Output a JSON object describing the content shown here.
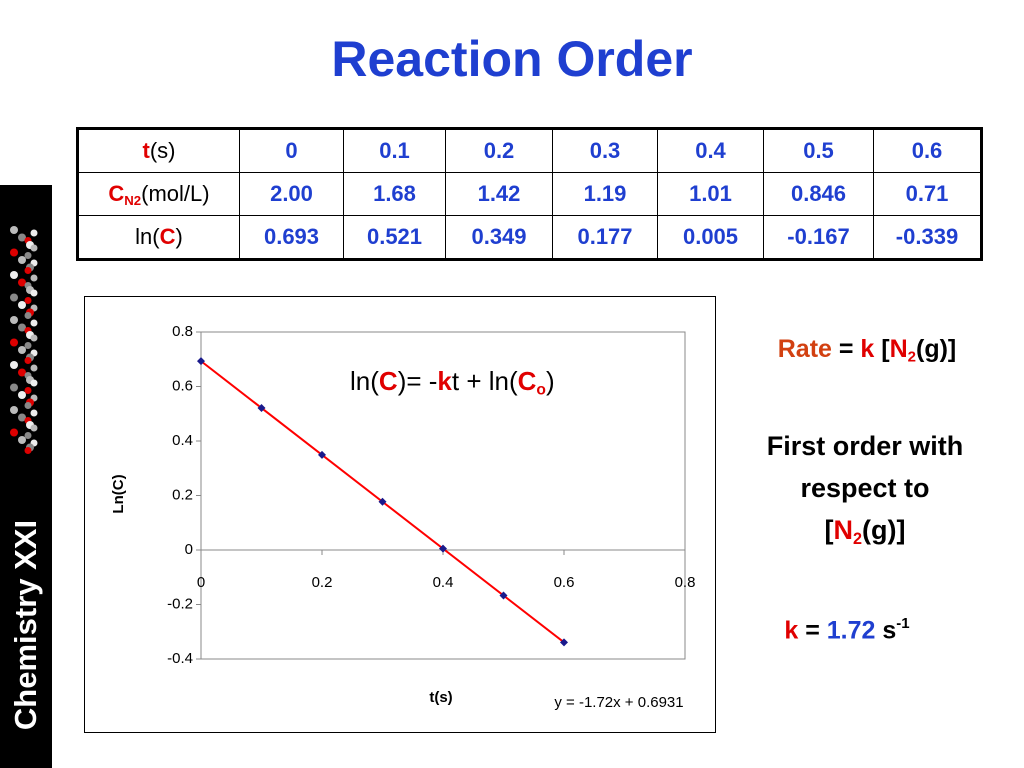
{
  "title": "Reaction Order",
  "sidebar": {
    "label": "Chemistry XXI"
  },
  "table": {
    "rows": [
      {
        "label": [
          {
            "text": "t",
            "style": "red"
          },
          {
            "text": "(s)",
            "style": "plain"
          }
        ],
        "cells": [
          "0",
          "0.1",
          "0.2",
          "0.3",
          "0.4",
          "0.5",
          "0.6"
        ]
      },
      {
        "label": [
          {
            "text": "C",
            "style": "red"
          },
          {
            "text": "N2",
            "style": "red sub"
          },
          {
            "text": "(mol/L)",
            "style": "plain"
          }
        ],
        "cells": [
          "2.00",
          "1.68",
          "1.42",
          "1.19",
          "1.01",
          "0.846",
          "0.71"
        ]
      },
      {
        "label": [
          {
            "text": "ln(",
            "style": "plain"
          },
          {
            "text": "C",
            "style": "red"
          },
          {
            "text": ")",
            "style": "plain"
          }
        ],
        "cells": [
          "0.693",
          "0.521",
          "0.349",
          "0.177",
          "0.005",
          "-0.167",
          "-0.339"
        ]
      }
    ]
  },
  "chart_data": {
    "type": "scatter",
    "x": [
      0,
      0.1,
      0.2,
      0.3,
      0.4,
      0.5,
      0.6
    ],
    "values": [
      0.693,
      0.521,
      0.349,
      0.177,
      0.005,
      -0.167,
      -0.339
    ],
    "color": "#1a1a8c",
    "xlim": [
      0,
      0.8
    ],
    "xticks": [
      0,
      0.2,
      0.4,
      0.6,
      0.8
    ],
    "ylim": [
      -0.4,
      0.8
    ],
    "yticks": [
      -0.4,
      -0.2,
      0,
      0.2,
      0.4,
      0.6,
      0.8
    ],
    "xlabel": "t(s)",
    "ylabel": "Ln(C)",
    "trendline": {
      "slope": -1.72,
      "intercept": 0.6931,
      "color": "#ff0000",
      "label": "y = -1.72x + 0.6931"
    },
    "annotation": [
      {
        "text": "ln(",
        "style": "plain"
      },
      {
        "text": "C",
        "style": "red"
      },
      {
        "text": ")= -",
        "style": "plain"
      },
      {
        "text": "k",
        "style": "red"
      },
      {
        "text": "t + ln(",
        "style": "plain"
      },
      {
        "text": "C",
        "style": "red"
      },
      {
        "text": "o",
        "style": "red sub"
      },
      {
        "text": ")",
        "style": "plain"
      }
    ]
  },
  "notes": {
    "rate_law": [
      {
        "text": "Rate",
        "style": "orange"
      },
      {
        "text": " = ",
        "style": "plain"
      },
      {
        "text": "k",
        "style": "red"
      },
      {
        "text": " [",
        "style": "plain"
      },
      {
        "text": "N",
        "style": "red"
      },
      {
        "text": "2",
        "style": "red sub"
      },
      {
        "text": "(g)]",
        "style": "plain"
      }
    ],
    "order": [
      [
        {
          "text": "First order with",
          "style": "plain"
        }
      ],
      [
        {
          "text": "respect to",
          "style": "plain"
        }
      ],
      [
        {
          "text": "[",
          "style": "plain"
        },
        {
          "text": "N",
          "style": "red"
        },
        {
          "text": "2",
          "style": "red sub"
        },
        {
          "text": "(g)]",
          "style": "plain"
        }
      ]
    ],
    "rate_constant": [
      {
        "text": "k",
        "style": "red"
      },
      {
        "text": " = ",
        "style": "plain"
      },
      {
        "text": "1.72",
        "style": "blue"
      },
      {
        "text": " s",
        "style": "plain"
      },
      {
        "text": "-1",
        "style": "sup"
      }
    ]
  }
}
